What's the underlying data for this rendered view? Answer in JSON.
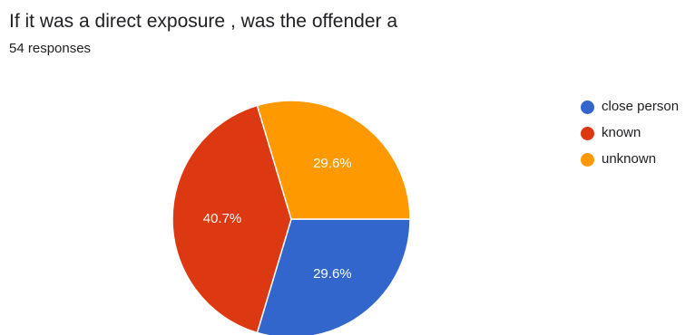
{
  "question": {
    "title": "If it was a direct exposure , was the offender a",
    "response_count": "54 responses"
  },
  "chart_data": {
    "type": "pie",
    "title": "If it was a direct exposure , was the offender a",
    "subtitle": "54 responses",
    "legend_position": "right",
    "slices": [
      {
        "label": "close person",
        "value": 29.6,
        "display": "29.6%",
        "color": "#3366CC"
      },
      {
        "label": "known",
        "value": 40.7,
        "display": "40.7%",
        "color": "#DC3912"
      },
      {
        "label": "unknown",
        "value": 29.6,
        "display": "29.6%",
        "color": "#FF9900"
      }
    ]
  }
}
